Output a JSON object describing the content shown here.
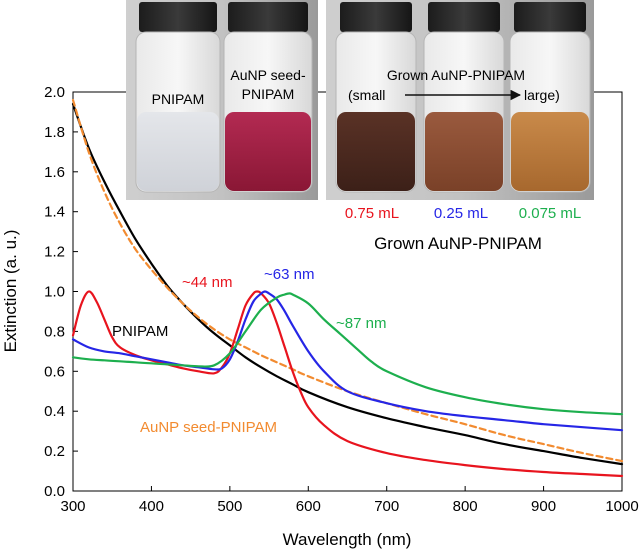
{
  "chart_data": {
    "type": "line",
    "xlabel": "Wavelength (nm)",
    "ylabel": "Extinction (a. u.)",
    "xlim": [
      300,
      1000
    ],
    "ylim": [
      0,
      2.0
    ],
    "xticks": [
      300,
      400,
      500,
      600,
      700,
      800,
      900,
      1000
    ],
    "xtick_labels": [
      "300",
      "400",
      "500",
      "600",
      "700",
      "800",
      "900",
      "1000"
    ],
    "yticks": [
      0,
      0.2,
      0.4,
      0.6,
      0.8,
      1.0,
      1.2,
      1.4,
      1.6,
      1.8,
      2.0
    ],
    "ytick_labels": [
      "0.0",
      "0.2",
      "0.4",
      "0.6",
      "0.8",
      "1.0",
      "1.2",
      "1.4",
      "1.6",
      "1.8",
      "2.0"
    ],
    "grid": false,
    "series": [
      {
        "name": "PNIPAM",
        "color": "#000000",
        "dash": false,
        "x": [
          300,
          320,
          340,
          360,
          380,
          400,
          420,
          440,
          460,
          480,
          500,
          520,
          540,
          560,
          580,
          600,
          650,
          700,
          750,
          800,
          850,
          900,
          950,
          1000
        ],
        "y": [
          1.94,
          1.72,
          1.55,
          1.4,
          1.26,
          1.14,
          1.03,
          0.94,
          0.86,
          0.79,
          0.73,
          0.67,
          0.62,
          0.575,
          0.535,
          0.495,
          0.42,
          0.365,
          0.32,
          0.28,
          0.235,
          0.2,
          0.165,
          0.135
        ]
      },
      {
        "name": "AuNP seed-PNIPAM",
        "color": "#F28B30",
        "dash": true,
        "x": [
          300,
          320,
          340,
          360,
          380,
          400,
          420,
          440,
          460,
          480,
          500,
          520,
          540,
          560,
          580,
          600,
          650,
          700,
          750,
          800,
          850,
          900,
          950,
          1000
        ],
        "y": [
          1.96,
          1.7,
          1.5,
          1.34,
          1.21,
          1.11,
          1.02,
          0.94,
          0.87,
          0.81,
          0.76,
          0.72,
          0.68,
          0.645,
          0.61,
          0.575,
          0.5,
          0.44,
          0.385,
          0.335,
          0.28,
          0.235,
          0.19,
          0.15
        ]
      },
      {
        "name": "0.75 mL",
        "color": "#E8141E",
        "dash": false,
        "x": [
          300,
          310,
          320,
          330,
          340,
          350,
          360,
          380,
          400,
          420,
          440,
          460,
          480,
          490,
          500,
          510,
          520,
          530,
          535,
          540,
          550,
          560,
          570,
          580,
          590,
          600,
          620,
          650,
          700,
          750,
          800,
          850,
          900,
          950,
          1000
        ],
        "y": [
          0.78,
          0.93,
          1.0,
          0.95,
          0.86,
          0.77,
          0.72,
          0.68,
          0.655,
          0.635,
          0.615,
          0.6,
          0.59,
          0.62,
          0.69,
          0.81,
          0.93,
          0.99,
          1.0,
          0.99,
          0.94,
          0.84,
          0.72,
          0.6,
          0.5,
          0.42,
          0.33,
          0.25,
          0.19,
          0.155,
          0.13,
          0.11,
          0.095,
          0.085,
          0.075
        ]
      },
      {
        "name": "0.25 mL",
        "color": "#2626E6",
        "dash": false,
        "x": [
          300,
          320,
          340,
          360,
          380,
          400,
          420,
          440,
          460,
          480,
          490,
          500,
          510,
          520,
          530,
          540,
          545,
          550,
          560,
          570,
          580,
          600,
          620,
          650,
          700,
          750,
          800,
          850,
          900,
          950,
          1000
        ],
        "y": [
          0.76,
          0.72,
          0.7,
          0.69,
          0.675,
          0.66,
          0.645,
          0.63,
          0.62,
          0.61,
          0.615,
          0.66,
          0.75,
          0.86,
          0.95,
          0.99,
          1.0,
          0.99,
          0.96,
          0.9,
          0.83,
          0.7,
          0.6,
          0.5,
          0.44,
          0.4,
          0.375,
          0.355,
          0.335,
          0.32,
          0.305
        ]
      },
      {
        "name": "0.075 mL",
        "color": "#1DAF4E",
        "dash": false,
        "x": [
          300,
          320,
          340,
          360,
          380,
          400,
          420,
          440,
          460,
          480,
          500,
          520,
          540,
          560,
          570,
          575,
          580,
          600,
          620,
          640,
          660,
          680,
          700,
          750,
          800,
          850,
          900,
          950,
          1000
        ],
        "y": [
          0.67,
          0.66,
          0.655,
          0.65,
          0.645,
          0.64,
          0.635,
          0.63,
          0.625,
          0.63,
          0.69,
          0.8,
          0.91,
          0.97,
          0.985,
          0.99,
          0.985,
          0.94,
          0.86,
          0.79,
          0.72,
          0.65,
          0.6,
          0.52,
          0.47,
          0.435,
          0.41,
          0.395,
          0.385
        ]
      }
    ],
    "annotations": {
      "pnipam": "PNIPAM",
      "aunp_seed": "AuNP seed-PNIPAM",
      "peak_44": "~44 nm",
      "peak_63": "~63 nm",
      "peak_87": "~87 nm"
    },
    "inset": {
      "vial1_label": "PNIPAM",
      "vial2_label_line1": "AuNP seed-",
      "vial2_label_line2": "PNIPAM",
      "grown_label": "Grown AuNP-PNIPAM",
      "small_label": "(small",
      "large_label": "large)",
      "vol_075": "0.75 mL",
      "vol_025": "0.25 mL",
      "vol_0075": "0.075 mL",
      "grown_caption": "Grown AuNP-PNIPAM"
    }
  }
}
